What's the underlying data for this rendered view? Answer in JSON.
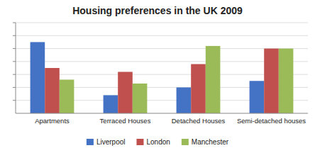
{
  "chart_data": {
    "type": "bar",
    "title": "Housing preferences in the UK 2009",
    "categories": [
      "Apartments",
      "Terraced Houses",
      "Detached Houses",
      "Semi-detached houses"
    ],
    "series": [
      {
        "name": "Liverpool",
        "color": "#4472C4",
        "values": [
          5.5,
          1.4,
          2.0,
          2.5
        ]
      },
      {
        "name": "London",
        "color": "#C0504D",
        "values": [
          3.5,
          3.2,
          3.8,
          5.0
        ]
      },
      {
        "name": "Manchester",
        "color": "#9BBB59",
        "values": [
          2.6,
          2.3,
          5.2,
          5.0
        ]
      }
    ],
    "ylim": [
      0,
      7
    ],
    "yticks": [
      1,
      2,
      3,
      4,
      5,
      6,
      7
    ],
    "grid": true,
    "tick_labels": "x",
    "legend": "bottom"
  }
}
